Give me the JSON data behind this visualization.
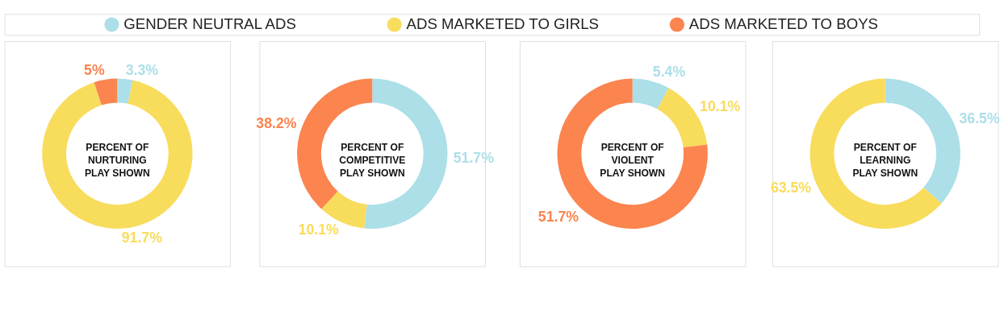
{
  "chart_data": [
    {
      "type": "donut",
      "title": "PERCENT OF NURTURING PLAY SHOWN",
      "legend": "top",
      "categories": [
        "GENDER NEUTRAL ADS",
        "ADS MARKETED TO GIRLS",
        "ADS MARKETED TO BOYS"
      ],
      "values": [
        3.3,
        91.7,
        5
      ],
      "value_labels": [
        "3.3%",
        "91.7%",
        "5%"
      ],
      "colors": [
        "#acdfe8",
        "#f8dc5c",
        "#fb844f"
      ]
    },
    {
      "type": "donut",
      "title": "PERCENT OF COMPETITIVE PLAY SHOWN",
      "categories": [
        null,
        null,
        null
      ],
      "values": [
        51.7,
        10.1,
        38.2
      ],
      "value_labels": [
        "51.7%",
        "10.1%",
        "38.2%"
      ],
      "colors": [
        "#acdfe8",
        "#f8dc5c",
        "#fb844f"
      ]
    },
    {
      "type": "donut",
      "title": "PERCENT OF VIOLENT PLAY SHOWN",
      "categories": [
        null,
        null,
        null
      ],
      "values": [
        5.4,
        10.1,
        51.7
      ],
      "value_labels": [
        "5.4%",
        "10.1%",
        "51.7%"
      ],
      "colors": [
        "#acdfe8",
        "#f8dc5c",
        "#fb844f"
      ]
    },
    {
      "type": "donut",
      "title": "PERCENT OF LEARNING PLAY SHOWN",
      "categories": [
        null,
        null
      ],
      "values": [
        36.5,
        63.5
      ],
      "value_labels": [
        "36.5%",
        "63.5%"
      ],
      "colors": [
        "#acdfe8",
        "#f8dc5c"
      ]
    }
  ]
}
